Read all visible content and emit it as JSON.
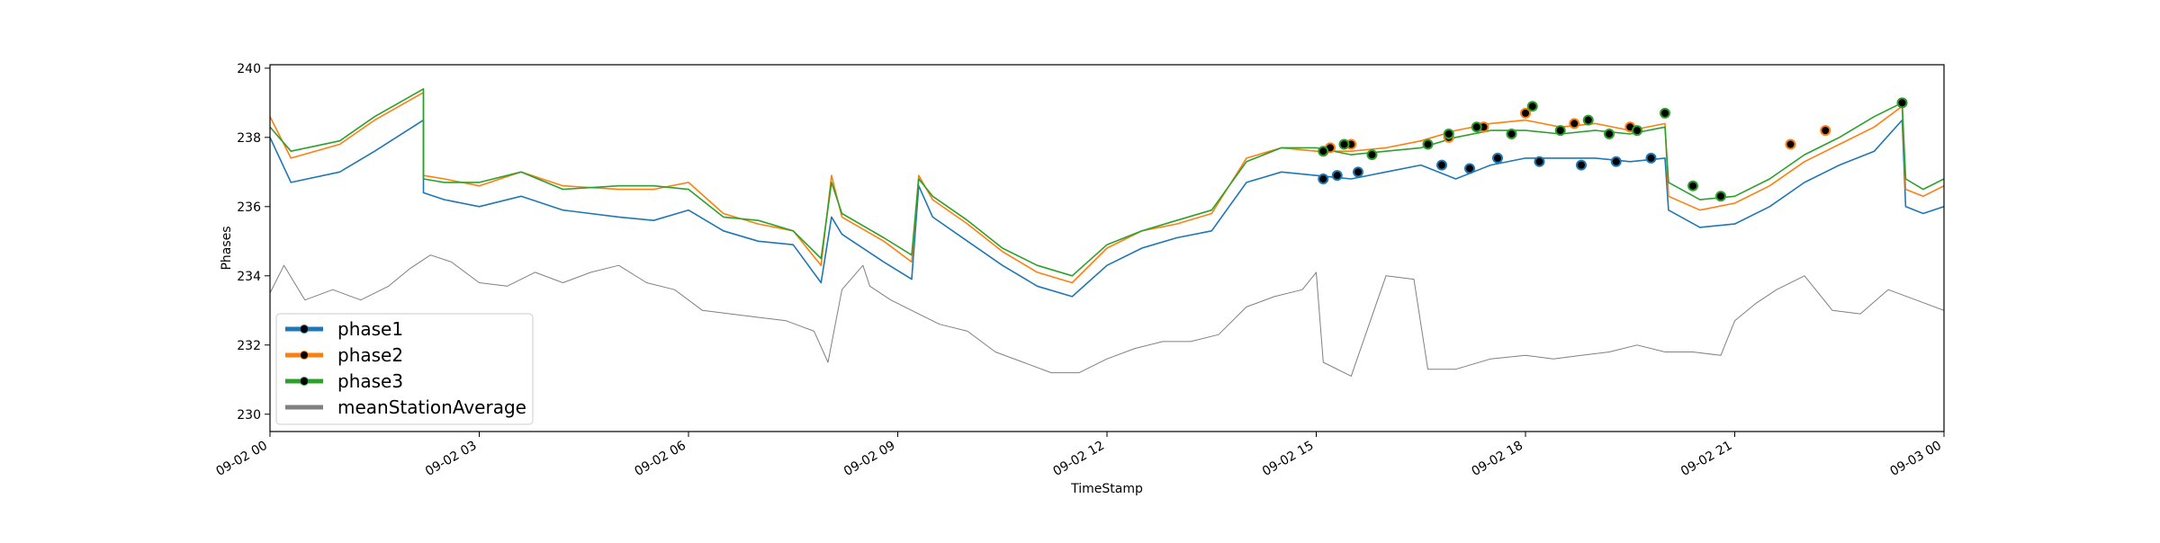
{
  "chart_data": {
    "type": "line",
    "xlabel": "TimeStamp",
    "ylabel": "Phases",
    "x_tick_labels": [
      "09-02 00",
      "09-02 03",
      "09-02 06",
      "09-02 09",
      "09-02 12",
      "09-02 15",
      "09-02 18",
      "09-02 21",
      "09-03 00"
    ],
    "x_tick_hours": [
      0,
      3,
      6,
      9,
      12,
      15,
      18,
      21,
      24
    ],
    "xlim_hours": [
      0,
      24
    ],
    "y_ticks": [
      230,
      232,
      234,
      236,
      238,
      240
    ],
    "ylim": [
      229.5,
      240.1
    ],
    "grid": false,
    "legend_position": "lower-left",
    "series": [
      {
        "name": "phase1",
        "color": "#1f77b4",
        "marker": "circle",
        "x_hours": [
          0,
          0.3,
          1,
          1.5,
          2.2,
          2.2,
          2.5,
          3,
          3.6,
          4.2,
          5,
          5.5,
          6,
          6.5,
          7,
          7.5,
          7.9,
          8.05,
          8.2,
          8.8,
          9.2,
          9.3,
          9.5,
          10,
          10.5,
          11,
          11.5,
          12,
          12.5,
          13,
          13.5,
          14,
          14.5,
          15,
          15.5,
          16,
          16.5,
          17,
          17.5,
          18,
          18.5,
          19,
          19.5,
          20,
          20.05,
          20.5,
          21,
          21.5,
          22,
          22.5,
          23,
          23.4,
          23.45,
          23.7,
          24
        ],
        "values": [
          238,
          236.7,
          237,
          237.6,
          238.5,
          236.4,
          236.2,
          236,
          236.3,
          235.9,
          235.7,
          235.6,
          235.9,
          235.3,
          235,
          234.9,
          233.8,
          235.7,
          235.2,
          234.4,
          233.9,
          236.6,
          235.7,
          235,
          234.3,
          233.7,
          233.4,
          234.3,
          234.8,
          235.1,
          235.3,
          236.7,
          237,
          236.9,
          236.8,
          237,
          237.2,
          236.8,
          237.2,
          237.4,
          237.4,
          237.4,
          237.3,
          237.4,
          235.9,
          235.4,
          235.5,
          236,
          236.7,
          237.2,
          237.6,
          238.5,
          236,
          235.8,
          236
        ],
        "markers_x_hours": [
          15.1,
          15.3,
          15.6,
          16.8,
          17.2,
          17.6,
          18.2,
          18.8,
          19.3,
          19.8
        ],
        "markers_values": [
          236.8,
          236.9,
          237,
          237.2,
          237.1,
          237.4,
          237.3,
          237.2,
          237.3,
          237.4
        ]
      },
      {
        "name": "phase2",
        "color": "#ff7f0e",
        "marker": "circle",
        "x_hours": [
          0,
          0.3,
          1,
          1.5,
          2.2,
          2.2,
          2.5,
          3,
          3.6,
          4.2,
          5,
          5.5,
          6,
          6.5,
          7,
          7.5,
          7.9,
          8.05,
          8.2,
          8.8,
          9.2,
          9.3,
          9.5,
          10,
          10.5,
          11,
          11.5,
          12,
          12.5,
          13,
          13.5,
          14,
          14.5,
          15,
          15.5,
          16,
          16.5,
          17,
          17.5,
          18,
          18.5,
          19,
          19.5,
          20,
          20.05,
          20.5,
          21,
          21.5,
          22,
          22.5,
          23,
          23.4,
          23.45,
          23.7,
          24
        ],
        "values": [
          238.6,
          237.4,
          237.8,
          238.5,
          239.3,
          236.9,
          236.8,
          236.6,
          237,
          236.6,
          236.5,
          236.5,
          236.7,
          235.8,
          235.5,
          235.3,
          234.3,
          236.9,
          235.7,
          235,
          234.4,
          236.9,
          236.2,
          235.5,
          234.7,
          234.1,
          233.8,
          234.8,
          235.3,
          235.5,
          235.8,
          237.4,
          237.7,
          237.6,
          237.6,
          237.7,
          237.9,
          238.2,
          238.4,
          238.5,
          238.3,
          238.4,
          238.2,
          238.4,
          236.3,
          235.9,
          236.1,
          236.6,
          237.3,
          237.8,
          238.3,
          238.9,
          236.5,
          236.3,
          236.6
        ],
        "markers_x_hours": [
          15.2,
          15.5,
          16.9,
          17.4,
          18,
          18.7,
          19.5,
          21.8,
          22.3,
          23.4
        ],
        "markers_values": [
          237.7,
          237.8,
          238,
          238.3,
          238.7,
          238.4,
          238.3,
          237.8,
          238.2,
          239
        ]
      },
      {
        "name": "phase3",
        "color": "#2ca02c",
        "marker": "circle",
        "x_hours": [
          0,
          0.3,
          1,
          1.5,
          2.2,
          2.2,
          2.5,
          3,
          3.6,
          4.2,
          5,
          5.5,
          6,
          6.5,
          7,
          7.5,
          7.9,
          8.05,
          8.2,
          8.8,
          9.2,
          9.3,
          9.5,
          10,
          10.5,
          11,
          11.5,
          12,
          12.5,
          13,
          13.5,
          14,
          14.5,
          15,
          15.5,
          16,
          16.5,
          17,
          17.5,
          18,
          18.5,
          19,
          19.5,
          20,
          20.05,
          20.5,
          21,
          21.5,
          22,
          22.5,
          23,
          23.4,
          23.45,
          23.7,
          24
        ],
        "values": [
          238.3,
          237.6,
          237.9,
          238.6,
          239.4,
          236.8,
          236.7,
          236.7,
          237,
          236.5,
          236.6,
          236.6,
          236.5,
          235.7,
          235.6,
          235.3,
          234.5,
          236.7,
          235.8,
          235.1,
          234.6,
          236.8,
          236.3,
          235.6,
          234.8,
          234.3,
          234,
          234.9,
          235.3,
          235.6,
          235.9,
          237.3,
          237.7,
          237.7,
          237.5,
          237.6,
          237.7,
          238,
          238.2,
          238.2,
          238.1,
          238.2,
          238.1,
          238.3,
          236.7,
          236.2,
          236.3,
          236.8,
          237.5,
          238,
          238.6,
          239,
          236.8,
          236.5,
          236.8
        ],
        "markers_x_hours": [
          15.1,
          15.4,
          15.8,
          16.6,
          16.9,
          17.3,
          17.8,
          18.1,
          18.5,
          18.9,
          19.2,
          19.6,
          20,
          20.4,
          20.8,
          23.4
        ],
        "markers_values": [
          237.6,
          237.8,
          237.5,
          237.8,
          238.1,
          238.3,
          238.1,
          238.9,
          238.2,
          238.5,
          238.1,
          238.2,
          238.7,
          236.6,
          236.3,
          239
        ]
      },
      {
        "name": "meanStationAverage",
        "color": "#808080",
        "marker": "none",
        "x_hours": [
          0,
          0.2,
          0.5,
          0.9,
          1.3,
          1.7,
          2,
          2.3,
          2.6,
          3,
          3.4,
          3.8,
          4.2,
          4.6,
          5,
          5.4,
          5.8,
          6.2,
          6.6,
          7,
          7.4,
          7.8,
          8,
          8.2,
          8.5,
          8.6,
          8.9,
          9.2,
          9.6,
          10,
          10.4,
          10.8,
          11.2,
          11.6,
          12,
          12.4,
          12.8,
          13.2,
          13.6,
          14,
          14.4,
          14.8,
          15,
          15.1,
          15.5,
          16,
          16.4,
          16.6,
          17,
          17.5,
          18,
          18.4,
          18.8,
          19.2,
          19.6,
          20,
          20.4,
          20.8,
          21,
          21.3,
          21.6,
          22,
          22.4,
          22.8,
          23.2,
          23.6,
          24
        ],
        "values": [
          233.5,
          234.3,
          233.3,
          233.6,
          233.3,
          233.7,
          234.2,
          234.6,
          234.4,
          233.8,
          233.7,
          234.1,
          233.8,
          234.1,
          234.3,
          233.8,
          233.6,
          233,
          232.9,
          232.8,
          232.7,
          232.4,
          231.5,
          233.6,
          234.3,
          233.7,
          233.3,
          233,
          232.6,
          232.4,
          231.8,
          231.5,
          231.2,
          231.2,
          231.6,
          231.9,
          232.1,
          232.1,
          232.3,
          233.1,
          233.4,
          233.6,
          234.1,
          231.5,
          231.1,
          234,
          233.9,
          231.3,
          231.3,
          231.6,
          231.7,
          231.6,
          231.7,
          231.8,
          232,
          231.8,
          231.8,
          231.7,
          232.7,
          233.2,
          233.6,
          234,
          233,
          232.9,
          233.6,
          233.3,
          233
        ]
      }
    ]
  }
}
